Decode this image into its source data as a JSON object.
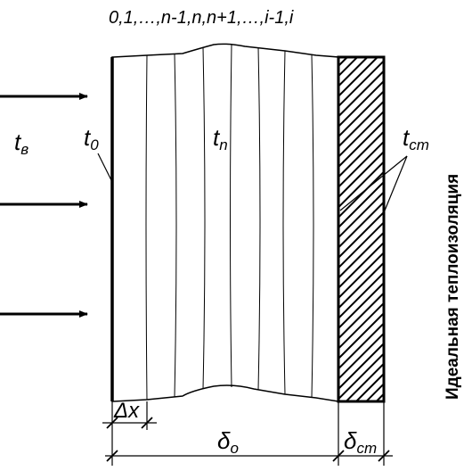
{
  "header": {
    "node_sequence": "0,1,…,n-1,n,n+1,…,i-1,i"
  },
  "labels": {
    "inner_temp_main": "t",
    "inner_temp_sub": "в",
    "surface_temp_main": "t",
    "surface_temp_sub": "0",
    "node_temp_main": "t",
    "node_temp_sub": "n",
    "wall_temp_main": "t",
    "wall_temp_sub": "ст",
    "step_main": "Δx",
    "ice_thickness_main": "δ",
    "ice_thickness_sub": "о",
    "wall_thickness_main": "δ",
    "wall_thickness_sub": "ст"
  },
  "side_caption": "Идеальная теплоизоляция",
  "colors": {
    "ink": "#000000",
    "background": "#ffffff"
  }
}
